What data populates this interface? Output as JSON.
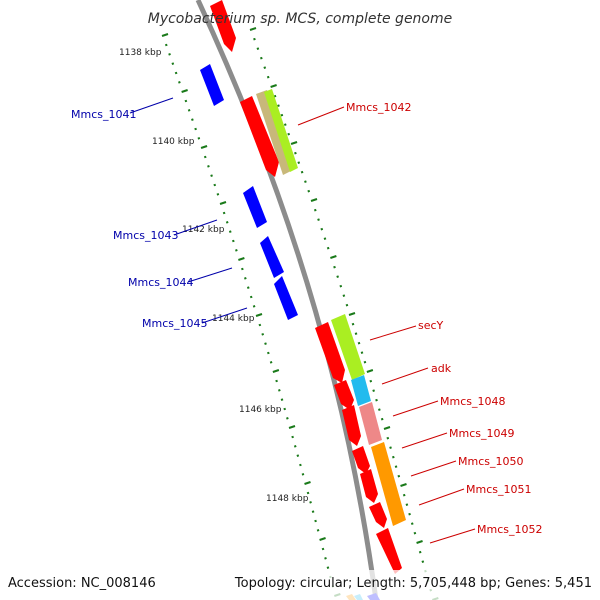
{
  "title": "Mycobacterium sp. MCS, complete genome",
  "footer": {
    "accession": "Accession: NC_008146",
    "topology": "Topology: circular; Length: 5,705,448 bp; Genes: 5,451"
  },
  "colors": {
    "backbone": "#8c8c8c",
    "tick": "#1a7a1a",
    "forward_label": "#cc0000",
    "reverse_label": "#0000aa",
    "red": "#ff0000",
    "blue": "#0000ff",
    "lime": "#aaee22",
    "tan": "#c8b87a",
    "cyan": "#22bbee",
    "pink": "#ee8888",
    "orange": "#ff9900"
  },
  "scale_labels": [
    "1138 kbp",
    "1140 kbp",
    "1142 kbp",
    "1144 kbp",
    "1146 kbp",
    "1148 kbp"
  ],
  "genes": [
    {
      "id": "Mmcs_1041",
      "label": "Mmcs_1041",
      "strand": "reverse"
    },
    {
      "id": "Mmcs_1042",
      "label": "Mmcs_1042",
      "strand": "forward"
    },
    {
      "id": "Mmcs_1043",
      "label": "Mmcs_1043",
      "strand": "reverse"
    },
    {
      "id": "Mmcs_1044",
      "label": "Mmcs_1044",
      "strand": "reverse"
    },
    {
      "id": "Mmcs_1045",
      "label": "Mmcs_1045",
      "strand": "reverse"
    },
    {
      "id": "secY",
      "label": "secY",
      "strand": "forward"
    },
    {
      "id": "adk",
      "label": "adk",
      "strand": "forward"
    },
    {
      "id": "Mmcs_1048",
      "label": "Mmcs_1048",
      "strand": "forward"
    },
    {
      "id": "Mmcs_1049",
      "label": "Mmcs_1049",
      "strand": "forward"
    },
    {
      "id": "Mmcs_1050",
      "label": "Mmcs_1050",
      "strand": "forward"
    },
    {
      "id": "Mmcs_1051",
      "label": "Mmcs_1051",
      "strand": "forward"
    },
    {
      "id": "Mmcs_1052",
      "label": "Mmcs_1052",
      "strand": "forward"
    }
  ]
}
